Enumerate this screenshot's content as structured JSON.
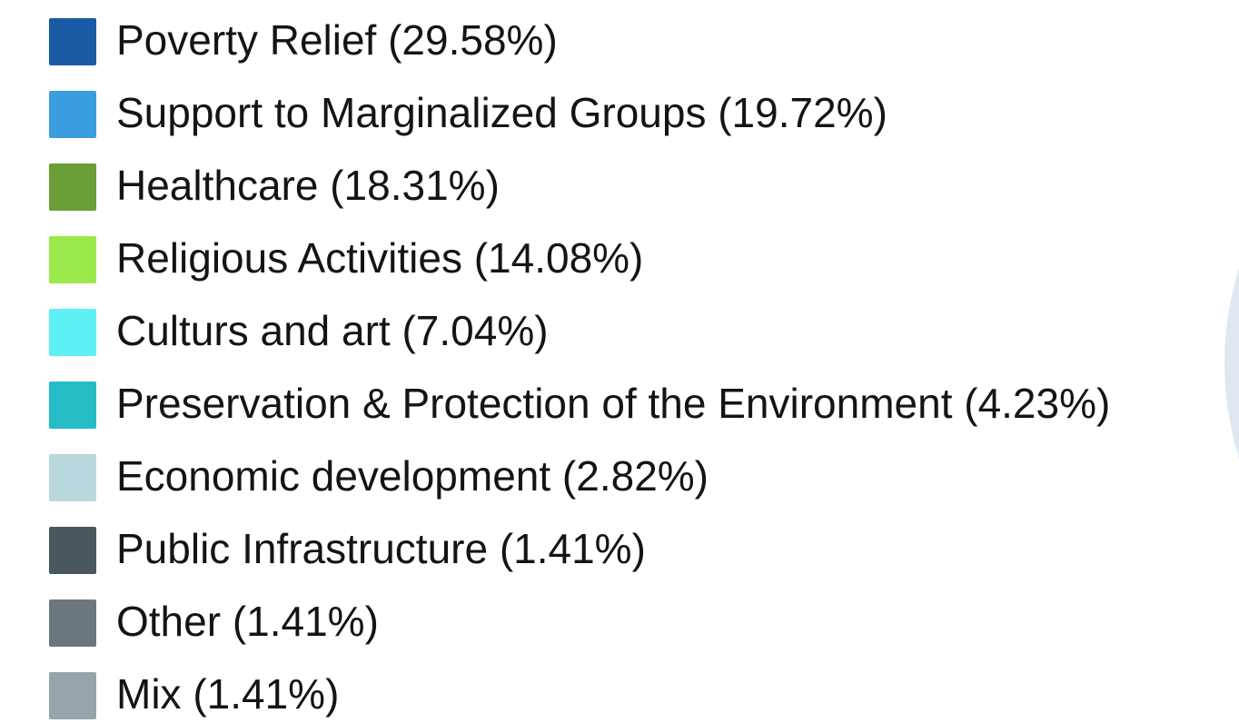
{
  "legend": {
    "items": [
      {
        "label": "Poverty Relief (29.58%)",
        "color": "#1a5ba6"
      },
      {
        "label": "Support to Marginalized Groups (19.72%)",
        "color": "#3a9de0"
      },
      {
        "label": "Healthcare (18.31%)",
        "color": "#6b9e38"
      },
      {
        "label": "Religious Activities (14.08%)",
        "color": "#9be84a"
      },
      {
        "label": "Culturs and art (7.04%)",
        "color": "#5cf0f5"
      },
      {
        "label": "Preservation & Protection of the Environment (4.23%)",
        "color": "#25bcc6"
      },
      {
        "label": "Economic development (2.82%)",
        "color": "#b8d8de"
      },
      {
        "label": "Public Infrastructure (1.41%)",
        "color": "#4a575d"
      },
      {
        "label": "Other (1.41%)",
        "color": "#6b777b"
      },
      {
        "label": "Mix (1.41%)",
        "color": "#98a5a8"
      }
    ]
  }
}
